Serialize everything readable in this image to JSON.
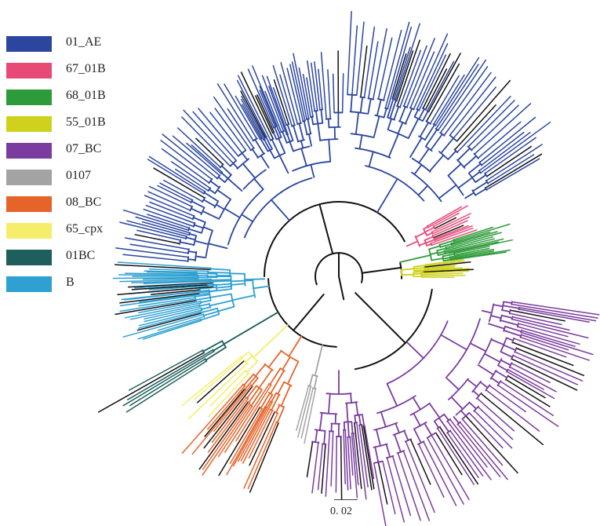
{
  "legend": {
    "items": [
      {
        "label": "01_AE",
        "color": "#2c46a0"
      },
      {
        "label": "67_01B",
        "color": "#e84a78"
      },
      {
        "label": "68_01B",
        "color": "#2e9b3a"
      },
      {
        "label": "55_01B",
        "color": "#cfd21c"
      },
      {
        "label": "07_BC",
        "color": "#7a3c9e"
      },
      {
        "label": "0107",
        "color": "#a3a3a3"
      },
      {
        "label": "08_BC",
        "color": "#e6642a"
      },
      {
        "label": "65_cpx",
        "color": "#f4ee6a"
      },
      {
        "label": "01BC",
        "color": "#1e5e5c"
      },
      {
        "label": "B",
        "color": "#2ea0d2"
      }
    ]
  },
  "scale": {
    "label": "0. 02"
  },
  "colors": {
    "backbone": "#111111",
    "unlabeled_leaf": "#111111"
  }
}
